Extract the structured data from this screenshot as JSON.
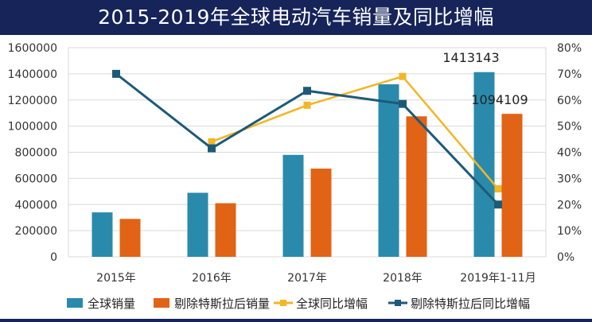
{
  "title": "2015-2019年全球电动汽车销量及同比增幅",
  "colors": {
    "title_bg": "#16245a",
    "global_sales": "#2a8aac",
    "ex_tesla_sales": "#e06316",
    "global_yoy": "#f2b628",
    "ex_tesla_yoy": "#1d5a78",
    "grid": "#d9d9d9",
    "axis_text": "#333333"
  },
  "chart_data": {
    "type": "bar",
    "categories": [
      "2015年",
      "2016年",
      "2017年",
      "2018年",
      "2019年1-11月"
    ],
    "y_left": {
      "min": 0,
      "max": 1600000,
      "step": 200000,
      "ticks": [
        "0",
        "200000",
        "400000",
        "600000",
        "800000",
        "1000000",
        "1200000",
        "1400000",
        "1600000"
      ]
    },
    "y_right": {
      "min": 0,
      "max": 80,
      "step": 10,
      "ticks": [
        "0%",
        "10%",
        "20%",
        "30%",
        "40%",
        "50%",
        "60%",
        "70%",
        "80%"
      ]
    },
    "grid": true,
    "legend_position": "bottom",
    "series": [
      {
        "name": "全球销量",
        "kind": "bar",
        "axis": "left",
        "values": [
          340000,
          490000,
          780000,
          1320000,
          1413143
        ]
      },
      {
        "name": "剔除特斯拉后销量",
        "kind": "bar",
        "axis": "left",
        "values": [
          290000,
          410000,
          675000,
          1075000,
          1094109
        ]
      },
      {
        "name": "全球同比增幅",
        "kind": "line",
        "axis": "right",
        "values": [
          null,
          44,
          58,
          69,
          26
        ]
      },
      {
        "name": "剔除特斯拉后同比增幅",
        "kind": "line",
        "axis": "right",
        "values": [
          70,
          41.5,
          63.5,
          58.5,
          20
        ]
      }
    ],
    "annotations": [
      "1413143",
      "1094109"
    ]
  }
}
